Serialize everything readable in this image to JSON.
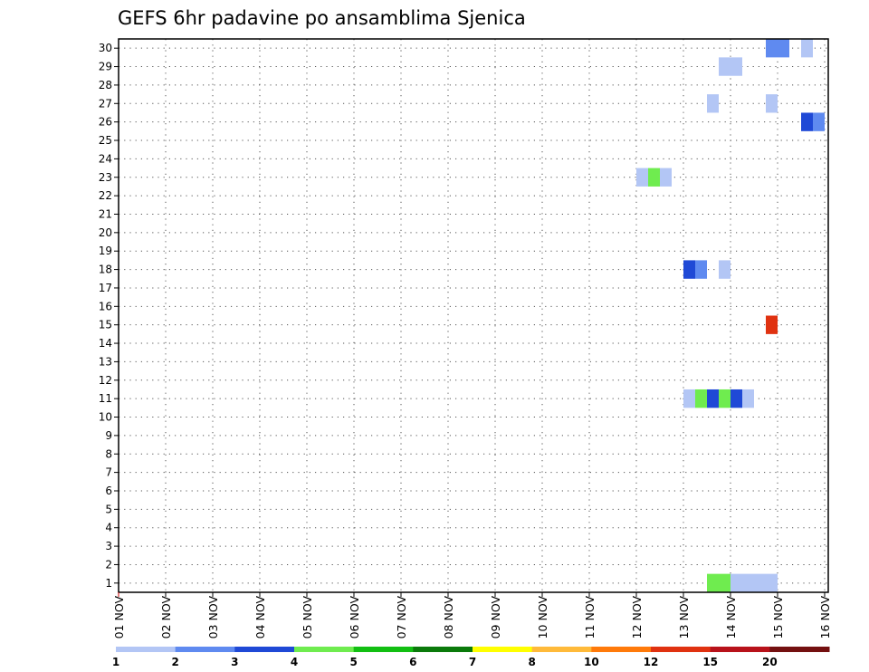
{
  "chart_data": {
    "type": "heatmap",
    "title": "GEFS 6hr padavine po ansamblima Sjenica",
    "xlabel": "",
    "ylabel": "",
    "x_ticks": [
      "01 NOV",
      "02 NOV",
      "03 NOV",
      "04 NOV",
      "05 NOV",
      "06 NOV",
      "07 NOV",
      "08 NOV",
      "09 NOV",
      "10 NOV",
      "11 NOV",
      "12 NOV",
      "13 NOV",
      "14 NOV",
      "15 NOV",
      "16 NOV"
    ],
    "y_ticks": [
      "1",
      "2",
      "3",
      "4",
      "5",
      "6",
      "7",
      "8",
      "9",
      "10",
      "11",
      "12",
      "13",
      "14",
      "15",
      "16",
      "17",
      "18",
      "19",
      "20",
      "21",
      "22",
      "23",
      "24",
      "25",
      "26",
      "27",
      "28",
      "29",
      "30"
    ],
    "x_range_days": [
      1,
      16.1
    ],
    "y_range": [
      0.5,
      30.5
    ],
    "grid": true,
    "colorbar": {
      "colors": [
        "#b3c6f5",
        "#5f8af0",
        "#1f49d6",
        "#6fec4f",
        "#12bf12",
        "#0a7a0a",
        "#ffff00",
        "#ffba3a",
        "#ff7a0a",
        "#e03210",
        "#b8121a",
        "#741010"
      ],
      "labels": [
        "1",
        "2",
        "3",
        "4",
        "5",
        "6",
        "7",
        "8",
        "10",
        "12",
        "15",
        "20"
      ]
    },
    "cells": [
      {
        "member": 30,
        "day": 14.75,
        "color": "#5f8af0"
      },
      {
        "member": 30,
        "day": 15.0,
        "color": "#5f8af0"
      },
      {
        "member": 30,
        "day": 15.5,
        "color": "#b3c6f5"
      },
      {
        "member": 29,
        "day": 13.75,
        "color": "#b3c6f5"
      },
      {
        "member": 29,
        "day": 14.0,
        "color": "#b3c6f5"
      },
      {
        "member": 27,
        "day": 13.5,
        "color": "#b3c6f5"
      },
      {
        "member": 27,
        "day": 14.75,
        "color": "#b3c6f5"
      },
      {
        "member": 26,
        "day": 15.5,
        "color": "#1f49d6"
      },
      {
        "member": 26,
        "day": 15.75,
        "color": "#5f8af0"
      },
      {
        "member": 23,
        "day": 12.0,
        "color": "#b3c6f5"
      },
      {
        "member": 23,
        "day": 12.25,
        "color": "#6fec4f"
      },
      {
        "member": 23,
        "day": 12.5,
        "color": "#b3c6f5"
      },
      {
        "member": 18,
        "day": 13.0,
        "color": "#1f49d6"
      },
      {
        "member": 18,
        "day": 13.25,
        "color": "#5f8af0"
      },
      {
        "member": 18,
        "day": 13.75,
        "color": "#b3c6f5"
      },
      {
        "member": 15,
        "day": 14.75,
        "color": "#e03210"
      },
      {
        "member": 11,
        "day": 13.0,
        "color": "#b3c6f5"
      },
      {
        "member": 11,
        "day": 13.25,
        "color": "#6fec4f"
      },
      {
        "member": 11,
        "day": 13.5,
        "color": "#1f49d6"
      },
      {
        "member": 11,
        "day": 13.75,
        "color": "#6fec4f"
      },
      {
        "member": 11,
        "day": 14.0,
        "color": "#1f49d6"
      },
      {
        "member": 11,
        "day": 14.25,
        "color": "#b3c6f5"
      },
      {
        "member": 1,
        "day": 13.5,
        "color": "#6fec4f"
      },
      {
        "member": 1,
        "day": 13.75,
        "color": "#6fec4f"
      },
      {
        "member": 1,
        "day": 14.0,
        "color": "#b3c6f5"
      },
      {
        "member": 1,
        "day": 14.25,
        "color": "#b3c6f5"
      },
      {
        "member": 1,
        "day": 14.5,
        "color": "#b3c6f5"
      },
      {
        "member": 1,
        "day": 14.75,
        "color": "#b3c6f5"
      }
    ]
  }
}
